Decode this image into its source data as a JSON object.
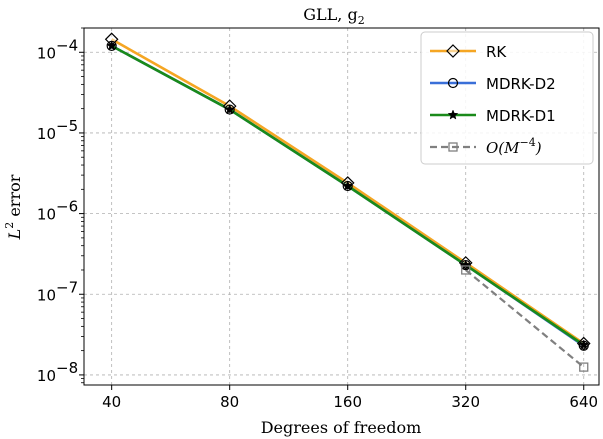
{
  "chart_data": {
    "type": "line",
    "title": "GLL, g",
    "title_sub": "2",
    "xlabel": "Degrees of freedom",
    "ylabel": "L",
    "ylabel_sup": "2",
    "ylabel_rest": " error",
    "x_scale": "log",
    "y_scale": "log",
    "x": [
      40,
      80,
      160,
      320,
      640
    ],
    "xticks": [
      "40",
      "80",
      "160",
      "320",
      "640"
    ],
    "xlim": [
      34,
      700
    ],
    "ylim": [
      7.5e-09,
      0.0002
    ],
    "yticks": [
      {
        "value": 1e-08,
        "base": "10",
        "exp": "−8"
      },
      {
        "value": 1e-07,
        "base": "10",
        "exp": "−7"
      },
      {
        "value": 1e-06,
        "base": "10",
        "exp": "−6"
      },
      {
        "value": 1e-05,
        "base": "10",
        "exp": "−5"
      },
      {
        "value": 0.0001,
        "base": "10",
        "exp": "−4"
      }
    ],
    "grid": true,
    "legend_position": "top-right",
    "series": [
      {
        "name": "RK",
        "color": "#f5a623",
        "marker": "diamond",
        "style": "solid",
        "x": [
          40,
          80,
          160,
          320,
          640
        ],
        "values": [
          0.000145,
          2.15e-05,
          2.4e-06,
          2.45e-07,
          2.45e-08
        ]
      },
      {
        "name": "MDRK-D2",
        "color": "#3a6fd8",
        "marker": "circle",
        "style": "solid",
        "x": [
          40,
          80,
          160,
          320,
          640
        ],
        "values": [
          0.00012,
          1.95e-05,
          2.2e-06,
          2.3e-07,
          2.3e-08
        ]
      },
      {
        "name": "MDRK-D1",
        "color": "#1a8a1a",
        "marker": "star",
        "style": "solid",
        "x": [
          40,
          80,
          160,
          320,
          640
        ],
        "values": [
          0.00012,
          1.95e-05,
          2.2e-06,
          2.3e-07,
          2.35e-08
        ]
      },
      {
        "name": "O(M",
        "name_sup": "−4",
        "name_end": ")",
        "color": "#808080",
        "marker": "square",
        "style": "dashed",
        "x": [
          320,
          640
        ],
        "values": [
          2e-07,
          1.25e-08
        ]
      }
    ]
  }
}
